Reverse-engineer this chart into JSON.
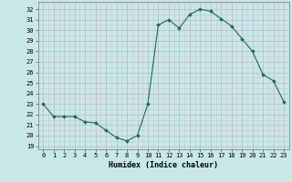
{
  "x": [
    0,
    1,
    2,
    3,
    4,
    5,
    6,
    7,
    8,
    9,
    10,
    11,
    12,
    13,
    14,
    15,
    16,
    17,
    18,
    19,
    20,
    21,
    22,
    23
  ],
  "y": [
    23.0,
    21.8,
    21.8,
    21.8,
    21.3,
    21.2,
    20.5,
    19.8,
    19.5,
    20.0,
    23.0,
    30.5,
    31.0,
    30.2,
    31.5,
    32.0,
    31.8,
    31.1,
    30.4,
    29.2,
    28.0,
    25.8,
    25.2,
    23.2
  ],
  "bg_color": "#c8e8e8",
  "grid_major_color": "#b8b8c8",
  "grid_minor_color": "#d4c4c4",
  "line_color": "#1a6b5a",
  "marker_color": "#1a6b5a",
  "ylabel_ticks": [
    19,
    20,
    21,
    22,
    23,
    24,
    25,
    26,
    27,
    28,
    29,
    30,
    31,
    32
  ],
  "xlabel": "Humidex (Indice chaleur)",
  "ylim": [
    18.7,
    32.7
  ],
  "xlim": [
    -0.5,
    23.5
  ]
}
